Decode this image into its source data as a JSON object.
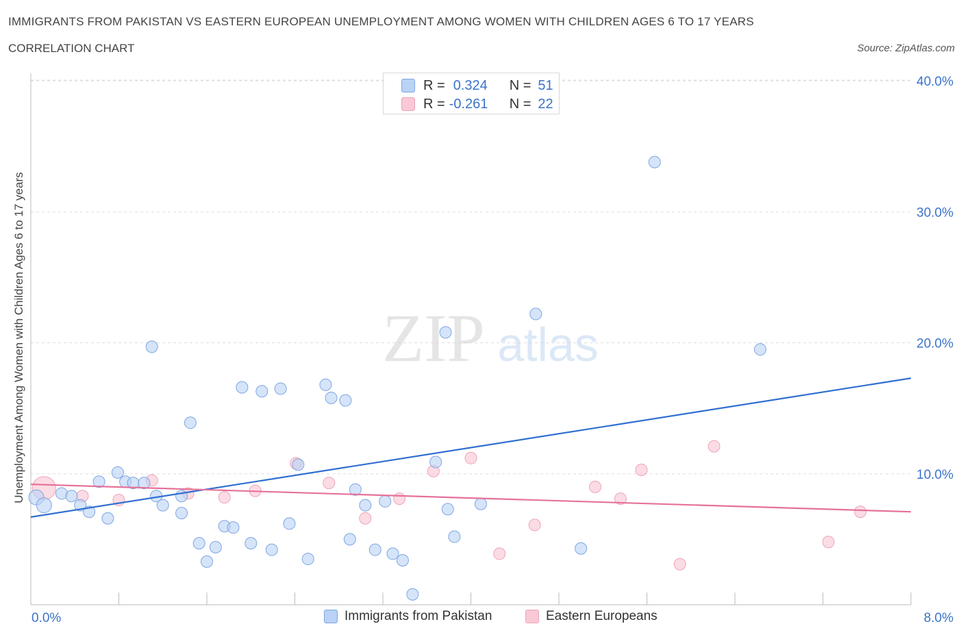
{
  "header": {
    "title": "IMMIGRANTS FROM PAKISTAN VS EASTERN EUROPEAN UNEMPLOYMENT AMONG WOMEN WITH CHILDREN AGES 6 TO 17 YEARS",
    "subtitle": "CORRELATION CHART",
    "source": "Source: ZipAtlas.com"
  },
  "watermark": {
    "zip": "ZIP",
    "atlas": "atlas"
  },
  "legend": {
    "rows": [
      {
        "r_label": "R =",
        "r_value": "0.324",
        "n_label": "N =",
        "n_value": "51"
      },
      {
        "r_label": "R =",
        "r_value": "-0.261",
        "n_label": "N =",
        "n_value": "22"
      }
    ]
  },
  "colors": {
    "blue_fill": "#b9d2f5",
    "blue_stroke": "#7ea6e0",
    "blue_line": "#2f6fd1",
    "pink_fill": "#f9c9d6",
    "pink_stroke": "#eea3b8",
    "pink_line": "#e5719a",
    "tick_text": "#3a73c9",
    "grid": "#dddddd"
  },
  "chart_data": {
    "type": "scatter",
    "title": "IMMIGRANTS FROM PAKISTAN VS EASTERN EUROPEAN UNEMPLOYMENT AMONG WOMEN WITH CHILDREN AGES 6 TO 17 YEARS",
    "xlabel": "",
    "ylabel": "Unemployment Among Women with Children Ages 6 to 17 years",
    "xlim": [
      0,
      8
    ],
    "ylim": [
      0,
      40
    ],
    "x_tick_labels": [
      "0.0%",
      "8.0%"
    ],
    "y_ticks": [
      10,
      20,
      30,
      40
    ],
    "y_tick_labels": [
      "10.0%",
      "20.0%",
      "30.0%",
      "40.0%"
    ],
    "grid": "horizontal dashed",
    "legend_placement": "bottom-center",
    "series": [
      {
        "name": "Immigrants from Pakistan",
        "points": [
          [
            0.05,
            8.2
          ],
          [
            0.12,
            7.6
          ],
          [
            0.28,
            8.5
          ],
          [
            0.37,
            8.3
          ],
          [
            0.45,
            7.6
          ],
          [
            0.53,
            7.1
          ],
          [
            0.62,
            9.4
          ],
          [
            0.7,
            6.6
          ],
          [
            0.79,
            10.1
          ],
          [
            0.86,
            9.4
          ],
          [
            0.93,
            9.3
          ],
          [
            1.03,
            9.3
          ],
          [
            1.1,
            19.7
          ],
          [
            1.14,
            8.3
          ],
          [
            1.2,
            7.6
          ],
          [
            1.37,
            8.3
          ],
          [
            1.37,
            7.0
          ],
          [
            1.45,
            13.9
          ],
          [
            1.53,
            4.7
          ],
          [
            1.6,
            3.3
          ],
          [
            1.68,
            4.4
          ],
          [
            1.76,
            6.0
          ],
          [
            1.84,
            5.9
          ],
          [
            1.92,
            16.6
          ],
          [
            2.0,
            4.7
          ],
          [
            2.1,
            16.3
          ],
          [
            2.19,
            4.2
          ],
          [
            2.27,
            16.5
          ],
          [
            2.35,
            6.2
          ],
          [
            2.43,
            10.7
          ],
          [
            2.52,
            3.5
          ],
          [
            2.68,
            16.8
          ],
          [
            2.73,
            15.8
          ],
          [
            2.86,
            15.6
          ],
          [
            2.9,
            5.0
          ],
          [
            2.95,
            8.8
          ],
          [
            3.04,
            7.6
          ],
          [
            3.13,
            4.2
          ],
          [
            3.22,
            7.9
          ],
          [
            3.29,
            3.9
          ],
          [
            3.38,
            3.4
          ],
          [
            3.47,
            0.8
          ],
          [
            3.68,
            10.9
          ],
          [
            3.77,
            20.8
          ],
          [
            3.79,
            7.3
          ],
          [
            3.85,
            5.2
          ],
          [
            4.09,
            7.7
          ],
          [
            4.59,
            22.2
          ],
          [
            5.0,
            4.3
          ],
          [
            5.67,
            33.8
          ],
          [
            6.63,
            19.5
          ]
        ],
        "trend": {
          "x": [
            0,
            8
          ],
          "y": [
            6.7,
            17.3
          ]
        }
      },
      {
        "name": "Eastern Europeans",
        "points": [
          [
            0.12,
            8.9
          ],
          [
            0.47,
            8.3
          ],
          [
            0.8,
            8.0
          ],
          [
            1.1,
            9.5
          ],
          [
            1.43,
            8.5
          ],
          [
            1.76,
            8.2
          ],
          [
            2.04,
            8.7
          ],
          [
            2.41,
            10.8
          ],
          [
            2.71,
            9.3
          ],
          [
            3.04,
            6.6
          ],
          [
            3.35,
            8.1
          ],
          [
            3.66,
            10.2
          ],
          [
            4.0,
            11.2
          ],
          [
            4.26,
            3.9
          ],
          [
            4.58,
            6.1
          ],
          [
            5.13,
            9.0
          ],
          [
            5.36,
            8.1
          ],
          [
            5.55,
            10.3
          ],
          [
            5.9,
            3.1
          ],
          [
            6.21,
            12.1
          ],
          [
            7.25,
            4.8
          ],
          [
            7.54,
            7.1
          ]
        ],
        "trend": {
          "x": [
            0,
            8
          ],
          "y": [
            9.2,
            7.1
          ]
        }
      }
    ]
  }
}
